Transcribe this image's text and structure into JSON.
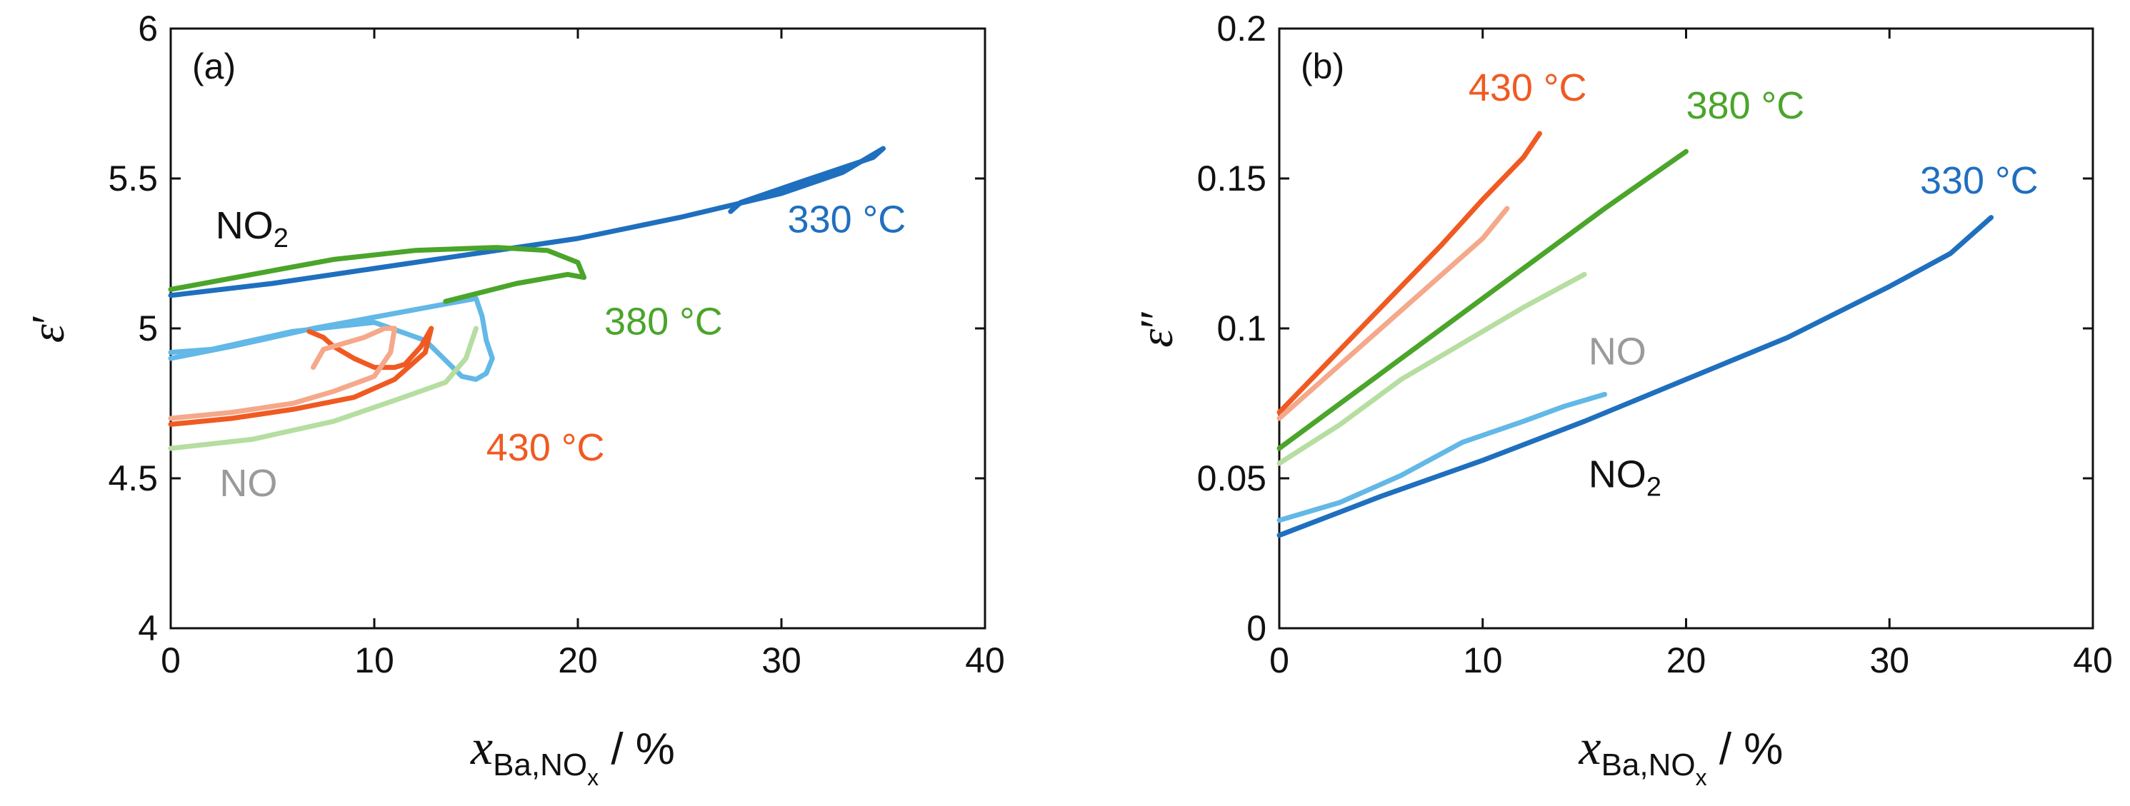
{
  "chart_data": [
    {
      "type": "line",
      "panel_label": "(a)",
      "ylabel_symbol": "ε",
      "ylabel_prime": "′",
      "xlabel": {
        "main": "x",
        "sub": "Ba,NO",
        "subsub": "x",
        "unit": " / %"
      },
      "xlim": [
        0,
        40
      ],
      "ylim": [
        4,
        6
      ],
      "x_ticks": [
        0,
        10,
        20,
        30,
        40
      ],
      "x_tick_labels": [
        "0",
        "10",
        "20",
        "30",
        "40"
      ],
      "y_ticks": [
        4,
        4.5,
        5,
        5.5,
        6
      ],
      "y_tick_labels": [
        "4",
        "4.5",
        "5",
        "5.5",
        "6"
      ],
      "series": [
        {
          "name": "330 °C NO2",
          "color": "#1f6fbf",
          "x": [
            0,
            5,
            10,
            15,
            20,
            25,
            30,
            33,
            35,
            34.5,
            31,
            28,
            27.5
          ],
          "y": [
            5.11,
            5.15,
            5.2,
            5.25,
            5.3,
            5.37,
            5.45,
            5.52,
            5.6,
            5.57,
            5.49,
            5.42,
            5.39
          ]
        },
        {
          "name": "330 °C NO",
          "color": "#62b8e6",
          "x": [
            0,
            3,
            7,
            11,
            15,
            15.3,
            15.5,
            15.8,
            15.5,
            15,
            14.3,
            12.5,
            10,
            6,
            2,
            0
          ],
          "y": [
            4.9,
            4.94,
            5.0,
            5.05,
            5.1,
            5.04,
            4.96,
            4.9,
            4.85,
            4.83,
            4.84,
            4.96,
            5.02,
            4.99,
            4.93,
            4.92
          ]
        },
        {
          "name": "380 °C NO2",
          "color": "#4aa52a",
          "x": [
            0,
            4,
            8,
            12,
            16,
            18.5,
            20,
            20.3,
            19.5,
            17,
            13.5
          ],
          "y": [
            5.13,
            5.18,
            5.23,
            5.26,
            5.27,
            5.26,
            5.22,
            5.17,
            5.18,
            5.15,
            5.09
          ]
        },
        {
          "name": "380 °C NO",
          "color": "#b5dea0",
          "x": [
            0,
            4,
            8,
            11,
            13.5,
            14.5,
            14.8,
            15
          ],
          "y": [
            4.6,
            4.63,
            4.69,
            4.76,
            4.82,
            4.9,
            4.96,
            5.0
          ]
        },
        {
          "name": "430 °C NO2",
          "color": "#f05a22",
          "x": [
            0,
            3,
            6,
            9,
            11,
            12.5,
            12.8,
            12.3,
            11.5,
            11,
            10,
            9,
            8,
            7.5,
            6.8
          ],
          "y": [
            4.68,
            4.7,
            4.73,
            4.77,
            4.83,
            4.92,
            5.0,
            4.94,
            4.88,
            4.87,
            4.87,
            4.9,
            4.94,
            4.97,
            4.99
          ]
        },
        {
          "name": "430 °C NO",
          "color": "#f5a88a",
          "x": [
            0,
            3,
            6,
            8,
            10,
            10.8,
            11,
            10.5,
            9.5,
            8.5,
            7.5,
            7
          ],
          "y": [
            4.7,
            4.72,
            4.75,
            4.79,
            4.84,
            4.92,
            5.0,
            5.0,
            4.97,
            4.95,
            4.93,
            4.87
          ]
        }
      ],
      "annotations": [
        {
          "text": "330 °C",
          "color": "#1f6fbf",
          "x": 30.3,
          "y": 5.32
        },
        {
          "text": "380 °C",
          "color": "#4aa52a",
          "x": 21.3,
          "y": 4.98
        },
        {
          "text": "430 °C",
          "color": "#f05a22",
          "x": 15.5,
          "y": 4.56
        },
        {
          "text": "NO",
          "color": "#9a9a9a",
          "x": 2.4,
          "y": 4.44
        },
        {
          "text": "NO",
          "sub": "2",
          "color": "#111111",
          "x": 2.2,
          "y": 5.3
        }
      ]
    },
    {
      "type": "line",
      "panel_label": "(b)",
      "ylabel_symbol": "ε",
      "ylabel_prime": "″",
      "xlabel": {
        "main": "x",
        "sub": "Ba,NO",
        "subsub": "x",
        "unit": " / %"
      },
      "xlim": [
        0,
        40
      ],
      "ylim": [
        0,
        0.2
      ],
      "x_ticks": [
        0,
        10,
        20,
        30,
        40
      ],
      "x_tick_labels": [
        "0",
        "10",
        "20",
        "30",
        "40"
      ],
      "y_ticks": [
        0,
        0.05,
        0.1,
        0.15,
        0.2
      ],
      "y_tick_labels": [
        "0",
        "0.05",
        "0.1",
        "0.15",
        "0.2"
      ],
      "series": [
        {
          "name": "330 °C NO2",
          "color": "#1f6fbf",
          "x": [
            0,
            5,
            10,
            15,
            20,
            25,
            30,
            33,
            35
          ],
          "y": [
            0.031,
            0.044,
            0.056,
            0.069,
            0.083,
            0.097,
            0.114,
            0.125,
            0.137
          ]
        },
        {
          "name": "330 °C NO",
          "color": "#62b8e6",
          "x": [
            0,
            3,
            6,
            9,
            12,
            14,
            16
          ],
          "y": [
            0.036,
            0.042,
            0.051,
            0.062,
            0.069,
            0.074,
            0.078
          ]
        },
        {
          "name": "380 °C NO2",
          "color": "#4aa52a",
          "x": [
            0,
            4,
            8,
            12,
            16,
            20
          ],
          "y": [
            0.06,
            0.08,
            0.1,
            0.12,
            0.14,
            0.159
          ]
        },
        {
          "name": "380 °C NO",
          "color": "#b5dea0",
          "x": [
            0,
            3,
            6,
            9,
            12,
            15
          ],
          "y": [
            0.055,
            0.068,
            0.083,
            0.095,
            0.107,
            0.118
          ]
        },
        {
          "name": "430 °C NO2",
          "color": "#f05a22",
          "x": [
            0,
            2,
            4,
            6,
            8,
            10,
            12,
            12.8
          ],
          "y": [
            0.072,
            0.086,
            0.1,
            0.114,
            0.128,
            0.143,
            0.157,
            0.165
          ]
        },
        {
          "name": "430 °C NO",
          "color": "#f5a88a",
          "x": [
            0,
            2,
            4,
            6,
            8,
            10,
            11.2
          ],
          "y": [
            0.07,
            0.082,
            0.094,
            0.106,
            0.118,
            0.13,
            0.14
          ]
        }
      ],
      "annotations": [
        {
          "text": "430 °C",
          "color": "#f05a22",
          "x": 9.3,
          "y": 0.176
        },
        {
          "text": "380 °C",
          "color": "#4aa52a",
          "x": 20,
          "y": 0.17
        },
        {
          "text": "330 °C",
          "color": "#1f6fbf",
          "x": 31.5,
          "y": 0.145
        },
        {
          "text": "NO",
          "color": "#9a9a9a",
          "x": 15.2,
          "y": 0.088
        },
        {
          "text": "NO",
          "sub": "2",
          "color": "#111111",
          "x": 15.2,
          "y": 0.047
        }
      ]
    }
  ]
}
